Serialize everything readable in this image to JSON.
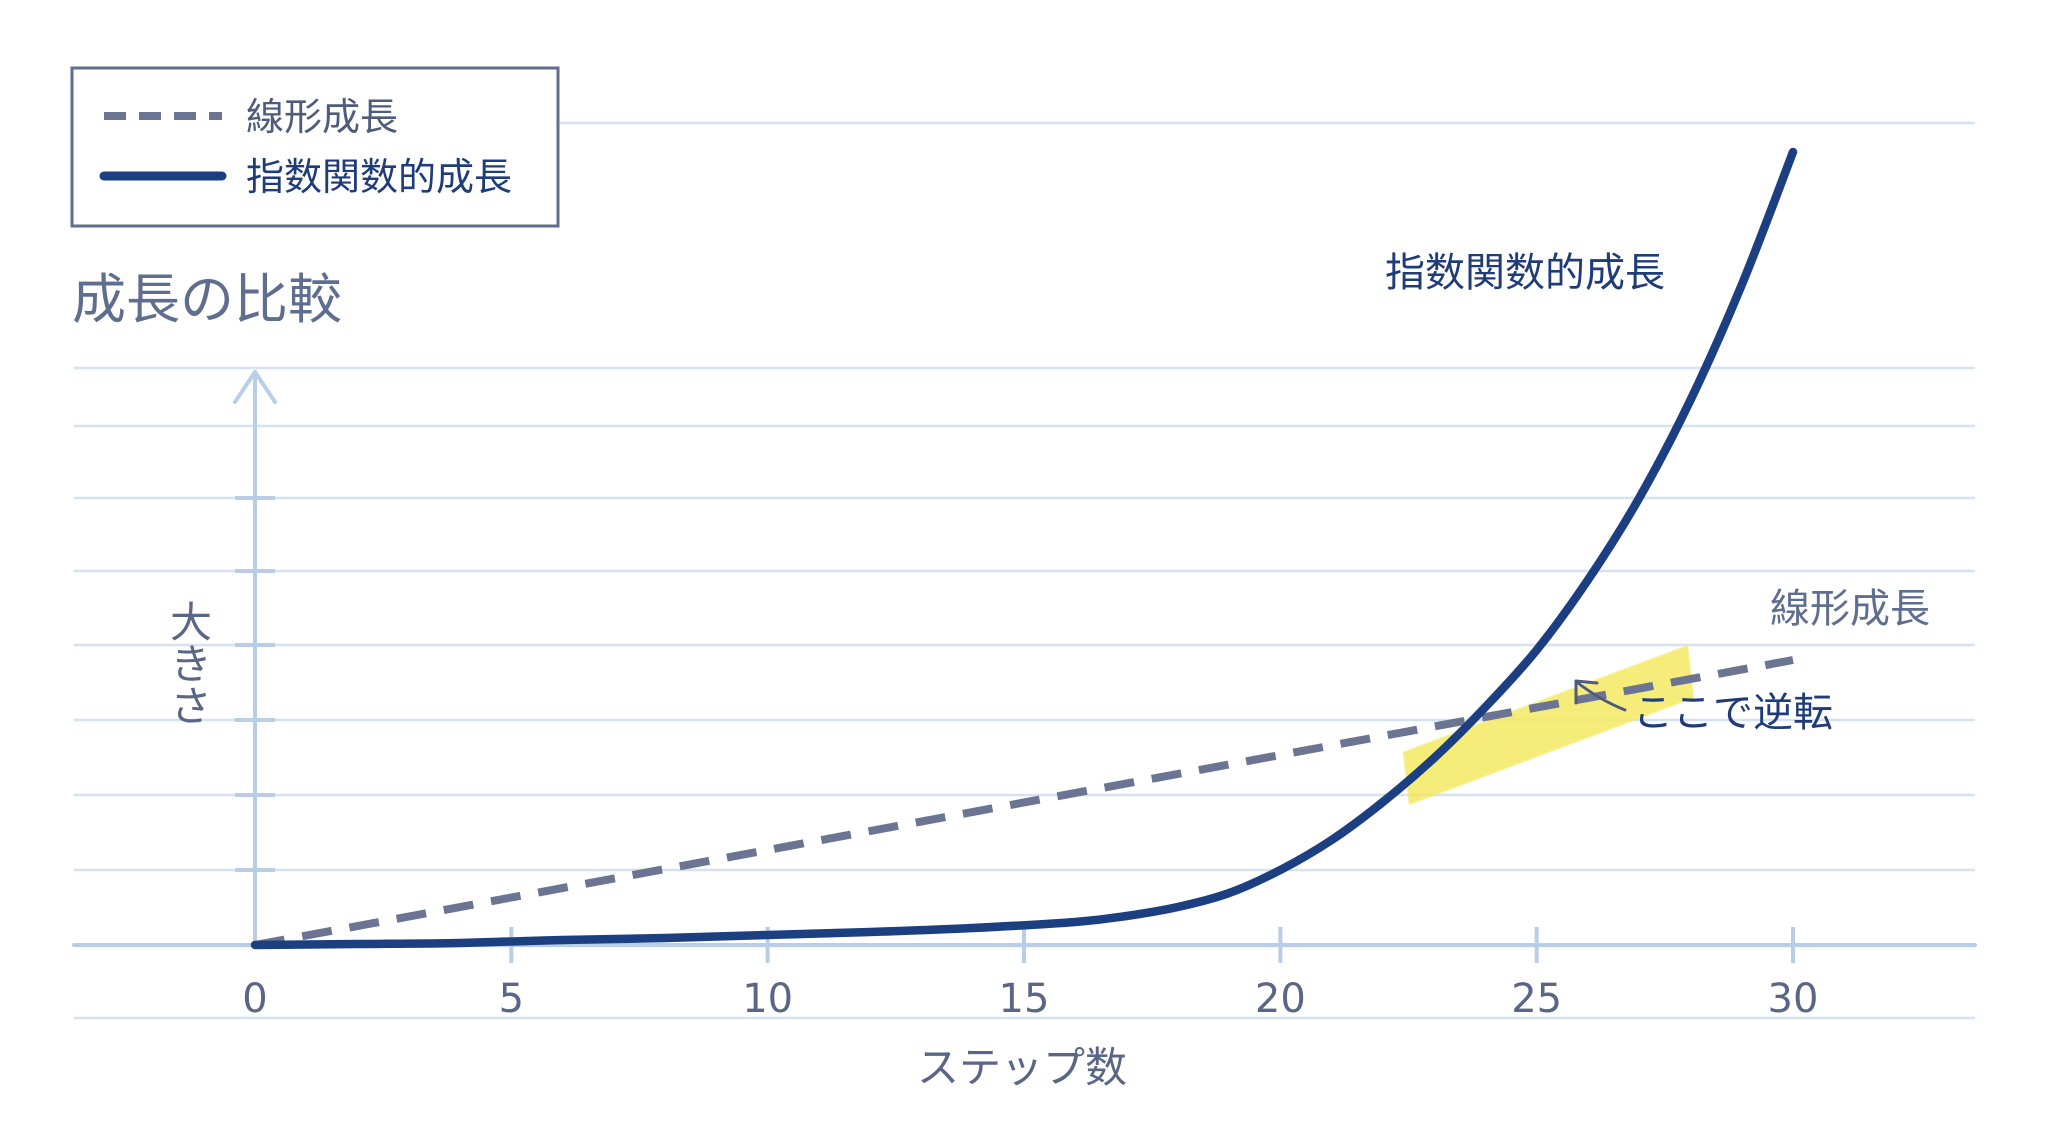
{
  "chart_data": {
    "type": "line",
    "title": "成長の比較",
    "xlabel": "ステップ数",
    "ylabel": "大きさ",
    "xlim": [
      0,
      30
    ],
    "xticks": [
      0,
      5,
      10,
      15,
      20,
      25,
      30
    ],
    "x": [
      0,
      2,
      4,
      6,
      8,
      10,
      12,
      14,
      16,
      17,
      18,
      19,
      20,
      21,
      22,
      23,
      24,
      25,
      26,
      27,
      28,
      29,
      30
    ],
    "series": [
      {
        "name": "線形成長",
        "style": "dashed",
        "color": "#6b7593",
        "values": [
          0.0,
          0.19,
          0.38,
          0.57,
          0.76,
          0.95,
          1.14,
          1.33,
          1.52,
          1.61,
          1.71,
          1.8,
          1.9,
          1.99,
          2.09,
          2.18,
          2.28,
          2.37,
          2.47,
          2.56,
          2.66,
          2.75,
          2.85
        ]
      },
      {
        "name": "指数関数的成長",
        "style": "solid",
        "color": "#1b3f80",
        "values": [
          0.0,
          0.01,
          0.02,
          0.05,
          0.07,
          0.1,
          0.13,
          0.17,
          0.23,
          0.29,
          0.38,
          0.52,
          0.75,
          1.05,
          1.43,
          1.87,
          2.38,
          2.95,
          3.65,
          4.47,
          5.45,
          6.6,
          7.93
        ]
      }
    ],
    "legend": {
      "position": "top-left",
      "items": [
        {
          "label": "線形成長",
          "style": "dashed",
          "color": "#6b7593"
        },
        {
          "label": "指数関数的成長",
          "style": "solid",
          "color": "#1b3f80"
        }
      ]
    },
    "labels": {
      "exponential": "指数関数的成長",
      "linear": "線形成長"
    },
    "annotation": {
      "text": "ここで逆転",
      "x": 25.2,
      "y": 2.39,
      "highlight_color": "#f5e963"
    },
    "grid": "horizontal notebook lines",
    "colors": {
      "axis": "#b9cde6",
      "grid": "#d6e2f1",
      "text": "#5a6685"
    }
  }
}
